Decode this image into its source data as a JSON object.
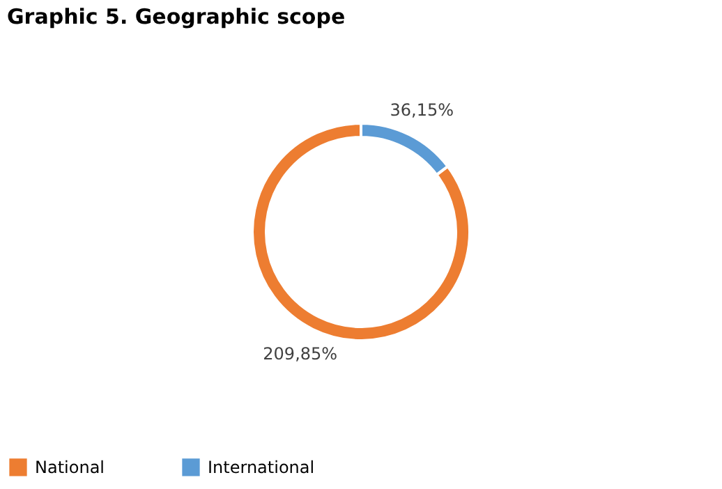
{
  "chart_data": {
    "type": "donut",
    "title": "Graphic 5. Geographic scope",
    "categories": [
      "National",
      "International"
    ],
    "values": [
      209.85,
      36.15
    ],
    "colors": [
      "#ed7d31",
      "#5b9bd5"
    ],
    "value_labels": [
      "209,85%",
      "36,15%"
    ],
    "legend": "bottom"
  }
}
